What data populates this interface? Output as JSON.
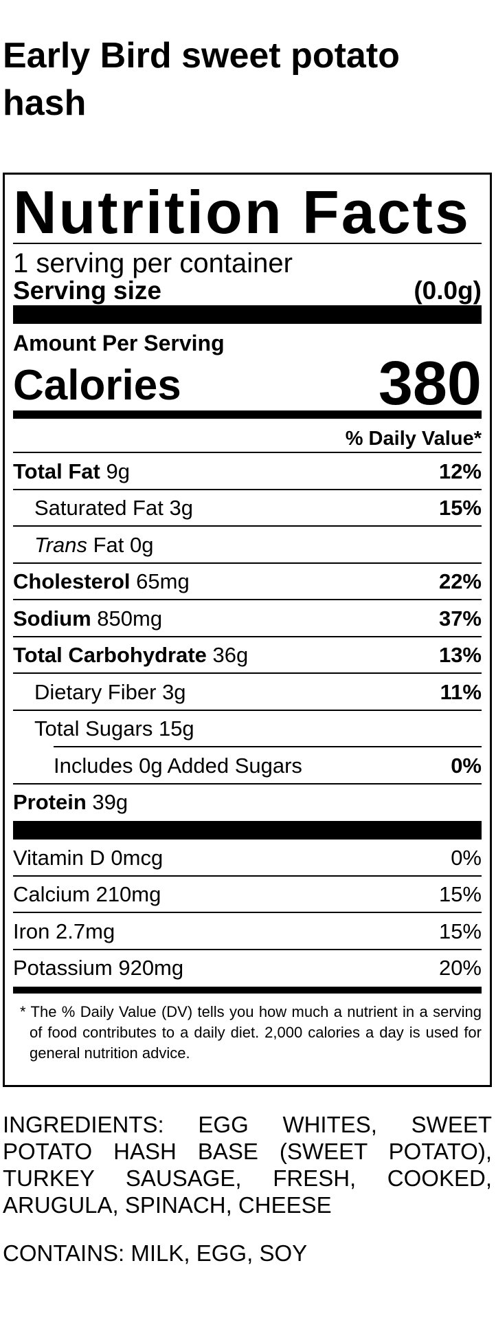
{
  "header": {
    "title": "Early Bird sweet potato hash"
  },
  "label": {
    "heading": "Nutrition Facts",
    "servings": "1 serving per container",
    "serving_size_label": "Serving size",
    "serving_size": "(0.0g)",
    "amount_per_serving": "Amount Per Serving",
    "calories_label": "Calories",
    "calories": 380,
    "daily_value_header": "% Daily Value*",
    "nutrients": [
      {
        "name": "Total Fat",
        "amount": "9g",
        "dv": "12%"
      },
      {
        "name": "Saturated Fat",
        "amount": "3g",
        "dv": "15%"
      },
      {
        "name": "Trans",
        "name_suffix": "Fat",
        "amount": "0g"
      },
      {
        "name": "Cholesterol",
        "amount": "65mg",
        "dv": "22%"
      },
      {
        "name": "Sodium",
        "amount": "850mg",
        "dv": "37%"
      },
      {
        "name": "Total Carbohydrate",
        "amount": "36g",
        "dv": "13%"
      },
      {
        "name": "Dietary Fiber",
        "amount": "3g",
        "dv": "11%"
      },
      {
        "name": "Total Sugars",
        "amount": "15g"
      },
      {
        "name": "Includes 0g Added Sugars",
        "dv": "0%"
      },
      {
        "name": "Protein",
        "amount": "39g"
      }
    ],
    "vitamins": [
      {
        "name": "Vitamin D 0mcg",
        "dv": "0%"
      },
      {
        "name": "Calcium 210mg",
        "dv": "15%"
      },
      {
        "name": "Iron 2.7mg",
        "dv": "15%"
      },
      {
        "name": "Potassium 920mg",
        "dv": "20%"
      }
    ],
    "footnote": "The % Daily Value (DV) tells you how much a nutrient in a serving of food contributes to a daily diet. 2,000 calories a day is used for general nutrition advice."
  },
  "ingredients": "INGREDIENTS: EGG WHITES, SWEET POTATO HASH BASE (SWEET POTATO), TURKEY SAUSAGE, FRESH, COOKED, ARUGULA, SPINACH, CHEESE",
  "contains": "CONTAINS: MILK, EGG, SOY"
}
